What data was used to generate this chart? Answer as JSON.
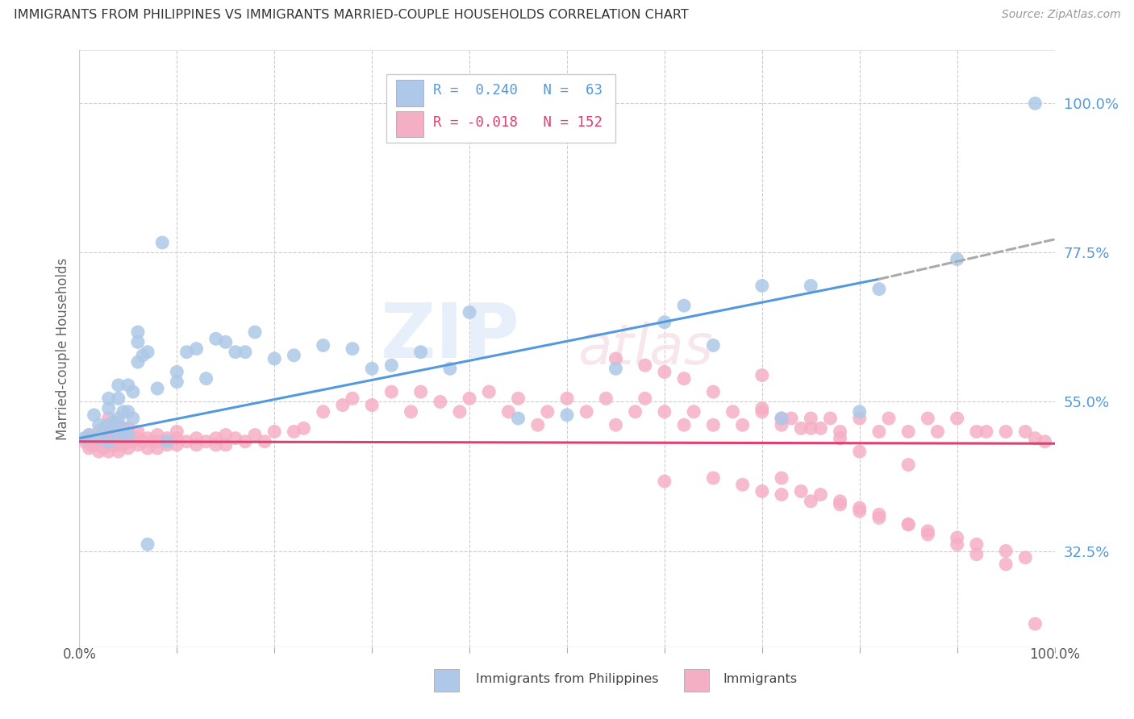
{
  "title": "IMMIGRANTS FROM PHILIPPINES VS IMMIGRANTS MARRIED-COUPLE HOUSEHOLDS CORRELATION CHART",
  "source": "Source: ZipAtlas.com",
  "ylabel": "Married-couple Households",
  "ytick_labels": [
    "32.5%",
    "55.0%",
    "77.5%",
    "100.0%"
  ],
  "ytick_values": [
    0.325,
    0.55,
    0.775,
    1.0
  ],
  "xlim": [
    0.0,
    1.0
  ],
  "ylim": [
    0.18,
    1.08
  ],
  "blue_R": 0.24,
  "blue_N": 63,
  "pink_R": -0.018,
  "pink_N": 152,
  "blue_color": "#adc8e8",
  "pink_color": "#f5afc5",
  "blue_line_color": "#5599dd",
  "pink_line_color": "#e04070",
  "legend_label_blue": "Immigrants from Philippines",
  "legend_label_pink": "Immigrants",
  "background_color": "#ffffff",
  "grid_color": "#cccccc",
  "title_color": "#444444",
  "tick_color": "#5599dd",
  "blue_line_start_x": 0.0,
  "blue_line_start_y": 0.495,
  "blue_line_solid_end_x": 0.82,
  "blue_line_solid_end_y": 0.735,
  "blue_line_dash_end_x": 1.0,
  "blue_line_dash_end_y": 0.795,
  "pink_line_start_x": 0.0,
  "pink_line_start_y": 0.49,
  "pink_line_end_x": 1.0,
  "pink_line_end_y": 0.487,
  "blue_scatter_x": [
    0.005,
    0.01,
    0.015,
    0.02,
    0.02,
    0.025,
    0.03,
    0.03,
    0.03,
    0.03,
    0.035,
    0.04,
    0.04,
    0.04,
    0.04,
    0.045,
    0.045,
    0.05,
    0.05,
    0.05,
    0.055,
    0.055,
    0.06,
    0.06,
    0.06,
    0.065,
    0.07,
    0.07,
    0.08,
    0.085,
    0.09,
    0.1,
    0.1,
    0.11,
    0.12,
    0.13,
    0.14,
    0.15,
    0.16,
    0.17,
    0.18,
    0.2,
    0.22,
    0.25,
    0.28,
    0.3,
    0.32,
    0.35,
    0.38,
    0.4,
    0.45,
    0.5,
    0.55,
    0.6,
    0.62,
    0.65,
    0.7,
    0.72,
    0.75,
    0.8,
    0.82,
    0.9,
    0.98
  ],
  "blue_scatter_y": [
    0.495,
    0.5,
    0.53,
    0.495,
    0.515,
    0.51,
    0.49,
    0.515,
    0.54,
    0.555,
    0.52,
    0.5,
    0.525,
    0.555,
    0.575,
    0.51,
    0.535,
    0.5,
    0.535,
    0.575,
    0.525,
    0.565,
    0.61,
    0.64,
    0.655,
    0.62,
    0.335,
    0.625,
    0.57,
    0.79,
    0.49,
    0.58,
    0.595,
    0.625,
    0.63,
    0.585,
    0.645,
    0.64,
    0.625,
    0.625,
    0.655,
    0.615,
    0.62,
    0.635,
    0.63,
    0.6,
    0.605,
    0.625,
    0.6,
    0.685,
    0.525,
    0.53,
    0.6,
    0.67,
    0.695,
    0.635,
    0.725,
    0.525,
    0.725,
    0.535,
    0.72,
    0.765,
    1.0
  ],
  "pink_scatter_x": [
    0.005,
    0.008,
    0.01,
    0.01,
    0.012,
    0.015,
    0.015,
    0.018,
    0.02,
    0.02,
    0.02,
    0.02,
    0.022,
    0.025,
    0.025,
    0.025,
    0.03,
    0.03,
    0.03,
    0.03,
    0.03,
    0.03,
    0.032,
    0.035,
    0.035,
    0.04,
    0.04,
    0.04,
    0.04,
    0.04,
    0.045,
    0.045,
    0.05,
    0.05,
    0.05,
    0.05,
    0.055,
    0.06,
    0.06,
    0.06,
    0.065,
    0.07,
    0.07,
    0.075,
    0.08,
    0.08,
    0.08,
    0.09,
    0.09,
    0.1,
    0.1,
    0.1,
    0.11,
    0.12,
    0.12,
    0.13,
    0.14,
    0.14,
    0.15,
    0.15,
    0.16,
    0.17,
    0.18,
    0.19,
    0.2,
    0.22,
    0.23,
    0.25,
    0.27,
    0.28,
    0.3,
    0.32,
    0.34,
    0.35,
    0.37,
    0.39,
    0.4,
    0.42,
    0.44,
    0.45,
    0.47,
    0.48,
    0.5,
    0.52,
    0.54,
    0.55,
    0.57,
    0.58,
    0.6,
    0.62,
    0.63,
    0.65,
    0.67,
    0.68,
    0.7,
    0.72,
    0.73,
    0.74,
    0.75,
    0.76,
    0.77,
    0.78,
    0.8,
    0.82,
    0.83,
    0.85,
    0.87,
    0.88,
    0.9,
    0.92,
    0.93,
    0.95,
    0.97,
    0.98,
    0.99,
    0.6,
    0.65,
    0.68,
    0.7,
    0.72,
    0.75,
    0.78,
    0.8,
    0.82,
    0.85,
    0.87,
    0.9,
    0.92,
    0.95,
    0.97,
    0.72,
    0.74,
    0.76,
    0.78,
    0.8,
    0.82,
    0.85,
    0.87,
    0.9,
    0.92,
    0.95,
    0.55,
    0.58,
    0.6,
    0.62,
    0.65,
    0.7,
    0.72,
    0.75,
    0.78,
    0.8,
    0.85,
    0.7,
    0.98
  ],
  "pink_scatter_y": [
    0.49,
    0.495,
    0.48,
    0.5,
    0.485,
    0.485,
    0.495,
    0.49,
    0.475,
    0.485,
    0.495,
    0.505,
    0.49,
    0.48,
    0.49,
    0.5,
    0.475,
    0.485,
    0.495,
    0.505,
    0.515,
    0.525,
    0.49,
    0.485,
    0.495,
    0.475,
    0.485,
    0.495,
    0.505,
    0.515,
    0.485,
    0.495,
    0.48,
    0.49,
    0.5,
    0.51,
    0.49,
    0.485,
    0.495,
    0.505,
    0.49,
    0.48,
    0.495,
    0.49,
    0.48,
    0.49,
    0.5,
    0.485,
    0.495,
    0.485,
    0.495,
    0.505,
    0.49,
    0.485,
    0.495,
    0.49,
    0.485,
    0.495,
    0.485,
    0.5,
    0.495,
    0.49,
    0.5,
    0.49,
    0.505,
    0.505,
    0.51,
    0.535,
    0.545,
    0.555,
    0.545,
    0.565,
    0.535,
    0.565,
    0.55,
    0.535,
    0.555,
    0.565,
    0.535,
    0.555,
    0.515,
    0.535,
    0.555,
    0.535,
    0.555,
    0.515,
    0.535,
    0.555,
    0.535,
    0.515,
    0.535,
    0.515,
    0.535,
    0.515,
    0.535,
    0.515,
    0.525,
    0.51,
    0.525,
    0.51,
    0.525,
    0.505,
    0.525,
    0.505,
    0.525,
    0.505,
    0.525,
    0.505,
    0.525,
    0.505,
    0.505,
    0.505,
    0.505,
    0.495,
    0.49,
    0.43,
    0.435,
    0.425,
    0.415,
    0.41,
    0.4,
    0.395,
    0.385,
    0.375,
    0.365,
    0.355,
    0.345,
    0.335,
    0.325,
    0.315,
    0.435,
    0.415,
    0.41,
    0.4,
    0.39,
    0.38,
    0.365,
    0.35,
    0.335,
    0.32,
    0.305,
    0.615,
    0.605,
    0.595,
    0.585,
    0.565,
    0.54,
    0.525,
    0.51,
    0.495,
    0.475,
    0.455,
    0.59,
    0.215
  ]
}
